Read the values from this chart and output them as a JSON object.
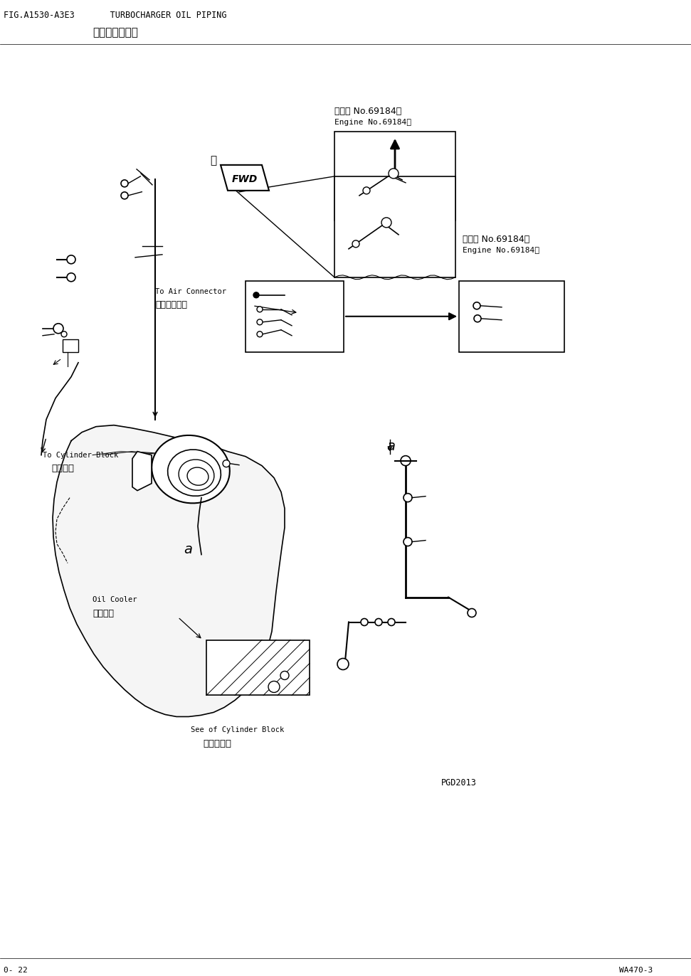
{
  "title_line1": "FIG.A1530-A3E3       TURBOCHARGER OIL PIPING",
  "title_line2": "涡轮增压器油管",
  "footer_left": "0- 22",
  "footer_right": "WA470-3",
  "bg_color": "#ffffff",
  "lc": "#000000",
  "tc": "#000000",
  "page_width": 9.71,
  "page_height": 13.72,
  "label_front": "前",
  "label_air_connector_en": "To Air Connector",
  "label_air_connector_cn": "至空气管接头",
  "label_cyl_block_en": "To Cylinder Block",
  "label_cyl_block_cn": "至气缸体",
  "label_oil_cooler_en": "Oil Cooler",
  "label_oil_cooler_cn": "油冷却器",
  "label_see_cyl_en": "See of Cylinder Block",
  "label_see_cyl_cn": "气缸体参照",
  "label_engine1_cn": "发动机 No.69184～",
  "label_engine1_en": "Engine No.69184～",
  "label_engine2_cn": "发动机 No.69184～",
  "label_engine2_en": "Engine No.69184～",
  "label_pgd": "PGD2013"
}
